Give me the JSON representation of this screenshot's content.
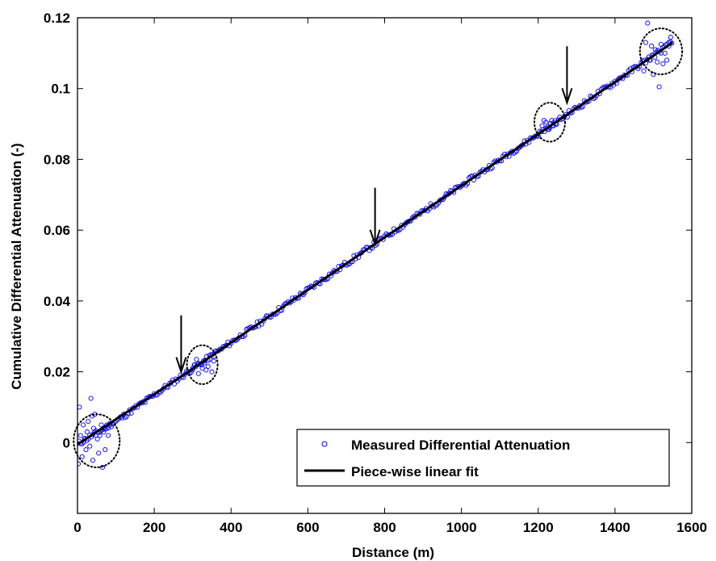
{
  "chart_data": {
    "type": "scatter",
    "title": "",
    "xlabel": "Distance (m)",
    "ylabel": "Cumulative Differential Attenuation (-)",
    "xlim": [
      0,
      1600
    ],
    "ylim": [
      -0.02,
      0.12
    ],
    "xticks": [
      0,
      200,
      400,
      600,
      800,
      1000,
      1200,
      1400,
      1600
    ],
    "xtick_labels": [
      "0",
      "200",
      "400",
      "600",
      "800",
      "1000",
      "1200",
      "1400",
      "1600"
    ],
    "yticks": [
      0,
      0.02,
      0.04,
      0.06,
      0.08,
      0.1,
      0.12
    ],
    "ytick_labels": [
      "0",
      "0.02",
      "0.04",
      "0.06",
      "0.08",
      "0.1",
      "0.12"
    ],
    "grid": false,
    "legend_position": "bottom-right",
    "series": [
      {
        "name": "Measured Differential Attenuation",
        "kind": "scatter",
        "marker": "circle",
        "color": "#0000ff",
        "trend": {
          "x": [
            0,
            100,
            275,
            780,
            1280,
            1550
          ],
          "y": [
            -0.0005,
            0.006,
            0.019,
            0.0565,
            0.093,
            0.113
          ]
        },
        "scattered_points": {
          "x": [
            2,
            5,
            8,
            12,
            15,
            18,
            22,
            25,
            28,
            32,
            35,
            38,
            40,
            42,
            45,
            48,
            52,
            55,
            58,
            62,
            65,
            68,
            72,
            75,
            80,
            85,
            300,
            305,
            310,
            315,
            320,
            325,
            330,
            335,
            340,
            345,
            350,
            355,
            1210,
            1215,
            1220,
            1225,
            1230,
            1235,
            1240,
            1245,
            1475,
            1480,
            1485,
            1490,
            1495,
            1500,
            1505,
            1510,
            1515,
            1520,
            1525,
            1530,
            1535,
            1540,
            1545
          ],
          "y": [
            -0.006,
            0.01,
            0.002,
            -0.004,
            0.005,
            0.001,
            -0.002,
            0.003,
            0.006,
            -0.001,
            0.0125,
            0.0075,
            -0.005,
            0.004,
            0.008,
            0.002,
            0.001,
            -0.003,
            0.002,
            0.005,
            -0.007,
            0.003,
            -0.002,
            0.004,
            0.002,
            0.005,
            0.021,
            0.022,
            0.0235,
            0.0195,
            0.022,
            0.021,
            0.0225,
            0.0205,
            0.0215,
            0.0235,
            0.02,
            0.023,
            0.0895,
            0.091,
            0.0905,
            0.0885,
            0.089,
            0.091,
            0.0895,
            0.09,
            0.105,
            0.113,
            0.1185,
            0.108,
            0.112,
            0.104,
            0.111,
            0.1075,
            0.1005,
            0.1125,
            0.107,
            0.11,
            0.108,
            0.113,
            0.1145
          ]
        }
      },
      {
        "name": "Piece-wise linear fit",
        "kind": "line",
        "color": "#000000",
        "x": [
          0,
          275,
          780,
          1280,
          1550
        ],
        "y": [
          -0.0005,
          0.019,
          0.0565,
          0.093,
          0.113
        ]
      }
    ],
    "annotations": [
      {
        "type": "arrow",
        "x": 270,
        "y": 0.02,
        "direction": "down"
      },
      {
        "type": "arrow",
        "x": 775,
        "y": 0.056,
        "direction": "down"
      },
      {
        "type": "arrow",
        "x": 1275,
        "y": 0.096,
        "direction": "down"
      },
      {
        "type": "dotted-circle",
        "cx": 50,
        "cy": 0.0005,
        "rx": 60,
        "ry": 0.0075
      },
      {
        "type": "dotted-circle",
        "cx": 325,
        "cy": 0.022,
        "rx": 40,
        "ry": 0.0055
      },
      {
        "type": "dotted-circle",
        "cx": 1230,
        "cy": 0.0905,
        "rx": 40,
        "ry": 0.0055
      },
      {
        "type": "dotted-circle",
        "cx": 1520,
        "cy": 0.1105,
        "rx": 55,
        "ry": 0.0065
      }
    ]
  }
}
